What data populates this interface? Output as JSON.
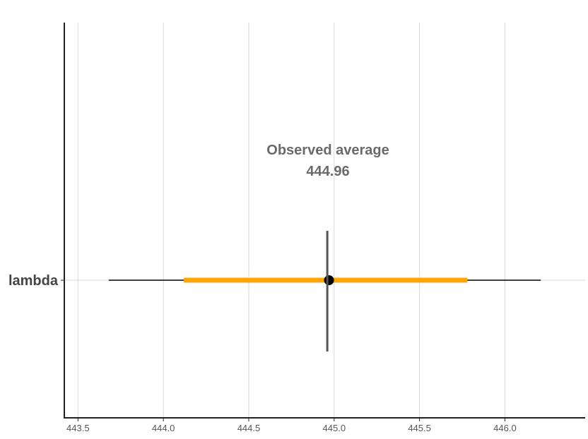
{
  "chart_data": {
    "type": "interval",
    "title": "",
    "xlabel": "",
    "ylabel": "",
    "xlim": [
      443.42,
      446.47
    ],
    "x_ticks": [
      443.5,
      444.0,
      444.5,
      445.0,
      445.5,
      446.0
    ],
    "x_tick_labels": [
      "443.5",
      "444.0",
      "444.5",
      "445.0",
      "445.5",
      "446.0"
    ],
    "categories": [
      "lambda"
    ],
    "series": [
      {
        "category": "lambda",
        "outer_interval": [
          443.68,
          446.21
        ],
        "inner_interval": [
          444.12,
          445.78
        ],
        "point": 444.97
      }
    ],
    "observed_average": 444.96,
    "annotation": {
      "line1": "Observed average",
      "line2": "444.96"
    },
    "grid": true,
    "colors": {
      "inner_interval": "#FFA500",
      "outer_interval": "#000000",
      "point": "#000000",
      "observed_line": "#555555",
      "gridline": "#d9d9d9",
      "axis": "#222222"
    }
  }
}
